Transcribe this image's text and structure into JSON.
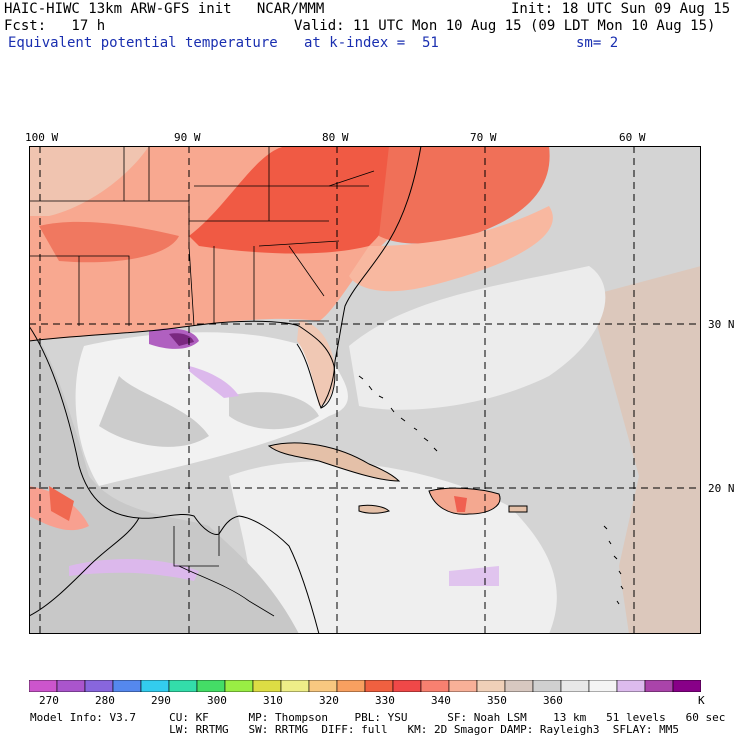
{
  "header": {
    "line1_left": "HAIC-HIWC 13km ARW-GFS init   NCAR/MMM",
    "line1_right": "Init: 18 UTC Sun 09 Aug 15",
    "line2_left": "Fcst:   17 h",
    "line2_right": "Valid: 11 UTC Mon 10 Aug 15 (09 LDT Mon 10 Aug 15)",
    "line3_field": "Equivalent potential temperature",
    "line3_level": "at k-index =  51",
    "line3_smooth": "sm= 2"
  },
  "map": {
    "lon_labels": [
      "100 W",
      "90 W",
      "80 W",
      "70 W",
      "60 W"
    ],
    "lat_labels": [
      "30 N",
      "20 N"
    ]
  },
  "colorbar": {
    "unit": "K",
    "labels": [
      "270",
      "280",
      "290",
      "300",
      "310",
      "320",
      "330",
      "340",
      "350",
      "360"
    ],
    "colors": [
      "#cc55cc",
      "#aa55cc",
      "#8866dd",
      "#5588ee",
      "#33ccee",
      "#33ddaa",
      "#44dd66",
      "#99ee44",
      "#dddd44",
      "#eeee88",
      "#f8c880",
      "#f8a060",
      "#f06040",
      "#f04848",
      "#f88070",
      "#f8b098",
      "#f0d0b8",
      "#d8c8c0",
      "#d0d0d0",
      "#e8e8e8",
      "#f4f4f4",
      "#ddbbee",
      "#aa44aa",
      "#880088"
    ]
  },
  "footer": {
    "line1": "Model Info: V3.7     CU: KF      MP: Thompson    PBL: YSU      SF: Noah LSM    13 km   51 levels   60 sec",
    "line2": "                     LW: RRTMG   SW: RRTMG  DIFF: full   KM: 2D Smagor DAMP: Rayleigh3  SFLAY: MM5"
  }
}
